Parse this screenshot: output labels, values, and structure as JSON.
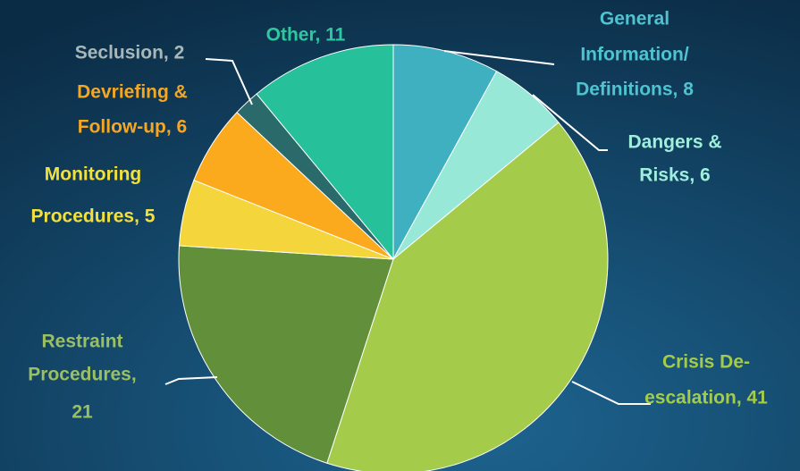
{
  "chart_data": {
    "type": "pie",
    "values": [
      8,
      6,
      41,
      21,
      5,
      6,
      2,
      11
    ],
    "value_labels": [
      [
        "General",
        "Information/",
        "Definitions, 8"
      ],
      [
        "Dangers &",
        "Risks, 6"
      ],
      [
        "Crisis De-",
        "escalation, 41"
      ],
      [
        "Restraint",
        "Procedures,",
        "21"
      ],
      [
        "Monitoring",
        "Procedures, 5"
      ],
      [
        "Devriefing &",
        "Follow-up, 6"
      ],
      [
        "Seclusion, 2"
      ],
      [
        "Other, 11"
      ]
    ],
    "colors": [
      "#3fb0c0",
      "#98e8d8",
      "#a4cc4a",
      "#62903a",
      "#f4d63c",
      "#fbaa1e",
      "#2a6a6a",
      "#26c09a"
    ],
    "label_colors": [
      "#4fc3d0",
      "#a0eedc",
      "#a4cc4a",
      "#9bbf63",
      "#f2e03e",
      "#f5a623",
      "#a8b8b8",
      "#2ec8a0"
    ]
  }
}
